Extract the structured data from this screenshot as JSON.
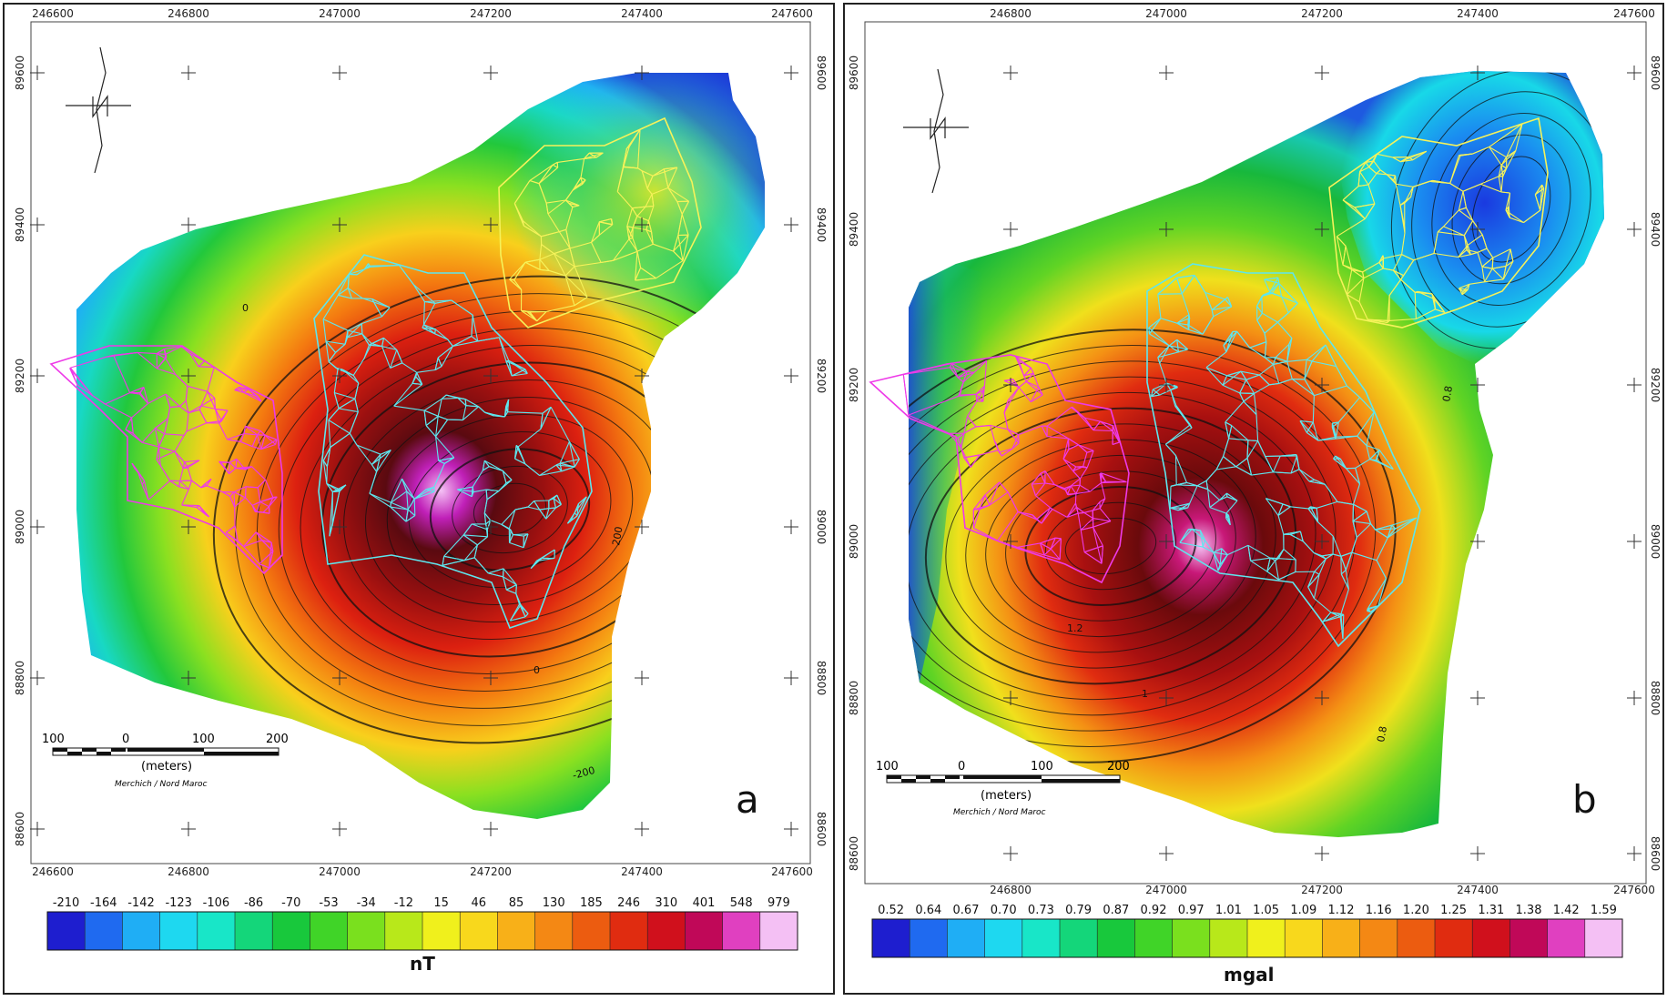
{
  "panels": [
    {
      "id": "a",
      "panel_label": "a",
      "x_ticks_top": [
        "246600",
        "246800",
        "247000",
        "247200",
        "247400",
        "247600"
      ],
      "x_ticks_bottom": [
        "246600",
        "246800",
        "247000",
        "247200",
        "247400",
        "247600"
      ],
      "y_ticks_left": [
        "89600",
        "89400",
        "89200",
        "89000",
        "88800",
        "88600"
      ],
      "y_ticks_right": [
        "89600",
        "89400",
        "89200",
        "89000",
        "88800",
        "88600"
      ],
      "scale_labels": [
        "100",
        "0",
        "100",
        "200"
      ],
      "scale_unit": "(meters)",
      "credit": "Merchich / Nord Maroc",
      "contour_labels": [
        "0",
        "200",
        "0",
        "-200"
      ],
      "colorbar_labels": [
        "-210",
        "-164",
        "-142",
        "-123",
        "-106",
        "-86",
        "-70",
        "-53",
        "-34",
        "-12",
        "15",
        "46",
        "85",
        "130",
        "185",
        "246",
        "310",
        "401",
        "548",
        "979"
      ],
      "colorbar_unit": "nT"
    },
    {
      "id": "b",
      "panel_label": "b",
      "x_ticks_top": [
        "246800",
        "247000",
        "247200",
        "247400",
        "247600"
      ],
      "x_ticks_bottom": [
        "246800",
        "247000",
        "247200",
        "247400",
        "247600"
      ],
      "y_ticks_left": [
        "89600",
        "89400",
        "89200",
        "89000",
        "88800",
        "88600"
      ],
      "y_ticks_right": [
        "89600",
        "89400",
        "89200",
        "89000",
        "88800",
        "88600"
      ],
      "scale_labels": [
        "100",
        "0",
        "100",
        "200"
      ],
      "scale_unit": "(meters)",
      "credit": "Merchich / Nord Maroc",
      "contour_labels": [
        "0.8",
        "1",
        "1.2",
        "0.8"
      ],
      "colorbar_labels": [
        "0.52",
        "0.64",
        "0.67",
        "0.70",
        "0.73",
        "0.79",
        "0.87",
        "0.92",
        "0.97",
        "1.01",
        "1.05",
        "1.09",
        "1.12",
        "1.16",
        "1.20",
        "1.25",
        "1.31",
        "1.38",
        "1.42",
        "1.59"
      ],
      "colorbar_unit": "mgal"
    }
  ],
  "colors": {
    "colorbar_ramp": [
      "#1e1ecf",
      "#1f6af0",
      "#1faef5",
      "#1ed8f0",
      "#18e6c8",
      "#14d67a",
      "#18c83c",
      "#40d428",
      "#7ae01e",
      "#b8e81a",
      "#f0f01c",
      "#f8d81c",
      "#f8b018",
      "#f48814",
      "#ec5c10",
      "#e02c10",
      "#d0101c",
      "#c00858",
      "#e040c0",
      "#f4c0f4"
    ],
    "mesh_yellow": "#f5f25a",
    "mesh_cyan": "#5ee6ee",
    "mesh_magenta": "#ee3ae8"
  }
}
